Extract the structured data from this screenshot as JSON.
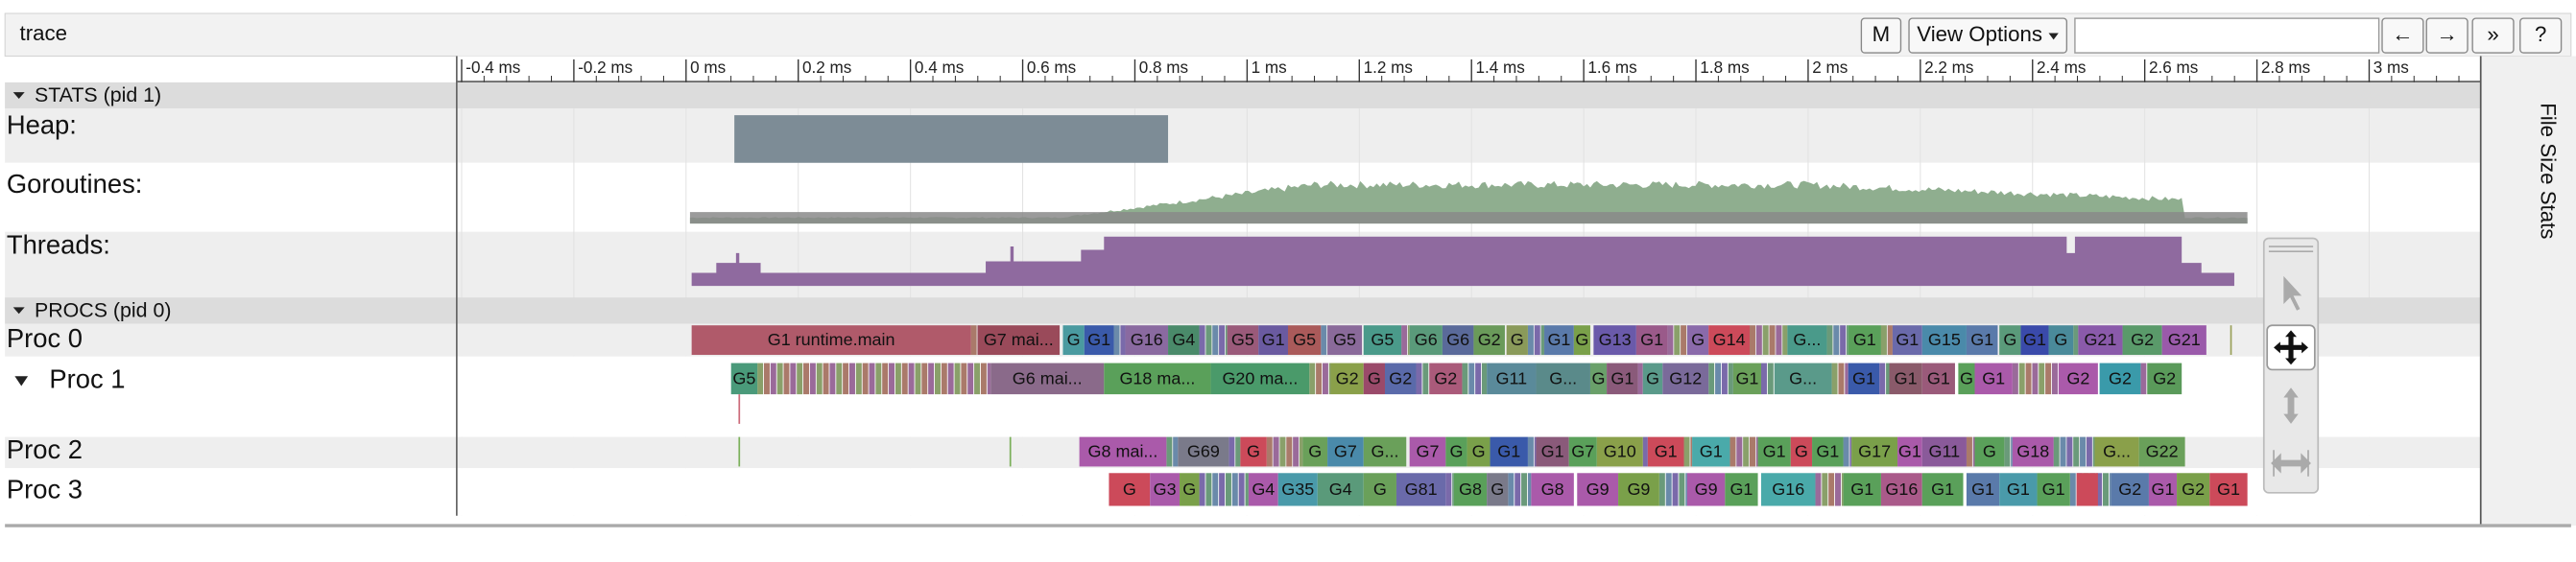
{
  "header": {
    "title": "trace",
    "buttons": [
      "M",
      "View Options",
      "←",
      "→",
      "»",
      "?"
    ]
  },
  "ruler": {
    "ticks": [
      "-0.4 ms",
      "-0.2 ms",
      "0 ms",
      "0.2 ms",
      "0.4 ms",
      "0.6 ms",
      "0.8 ms",
      "1 ms",
      "1.2 ms",
      "1.4 ms",
      "1.6 ms",
      "1.8 ms",
      "2 ms",
      "2.2 ms",
      "2.4 ms",
      "2.6 ms",
      "2.8 ms",
      "3 ms"
    ]
  },
  "stats": {
    "title": "STATS (pid 1)",
    "tracks": [
      "Heap:",
      "Goroutines:",
      "Threads:"
    ]
  },
  "procs": {
    "title": "PROCS (pid 0)",
    "rows": [
      {
        "name": "Proc 0",
        "slices": [
          "G1 runtime.main",
          "G7 mai...",
          "G",
          "G1",
          "G16",
          "G4",
          "G5",
          "G1",
          "G5",
          "G5",
          "G5",
          "G6",
          "G6",
          "G2",
          "G",
          "G1",
          "G",
          "G13",
          "G1",
          "G",
          "G14",
          "G...",
          "G1",
          "G1",
          "G15",
          "G1",
          "G",
          "G1",
          "G",
          "G21",
          "G2",
          "G21"
        ]
      },
      {
        "name": "Proc 1",
        "slices": [
          "G5",
          "G6 mai...",
          "G18 ma...",
          "G20 ma...",
          "G2",
          "G",
          "G2",
          "G2",
          "G11",
          "G...",
          "G",
          "G1",
          "G",
          "G12",
          "G1",
          "G...",
          "G1",
          "G1",
          "G1",
          "G",
          "G1",
          "G2",
          "G2",
          "G2"
        ]
      },
      {
        "name": "Proc 2",
        "slices": [
          "G8 mai...",
          "G69",
          "G",
          "G",
          "G7",
          "G...",
          "G7",
          "G",
          "G",
          "G1",
          "G1",
          "G7",
          "G10",
          "G1",
          "G1",
          "G1",
          "G",
          "G1",
          "G17",
          "G1",
          "G11",
          "G",
          "G18",
          "G...",
          "G22"
        ]
      },
      {
        "name": "Proc 3",
        "slices": [
          "G",
          "G3",
          "G",
          "G4",
          "G35",
          "G4",
          "G",
          "G81",
          "G8",
          "G",
          "G8",
          "G9",
          "G9",
          "G9",
          "G1",
          "G16",
          "G1",
          "G16",
          "G1",
          "G1",
          "G1",
          "G1",
          "G2",
          "G1",
          "G2",
          "G1"
        ]
      }
    ]
  },
  "side_panel": {
    "title": "File Size Stats"
  }
}
